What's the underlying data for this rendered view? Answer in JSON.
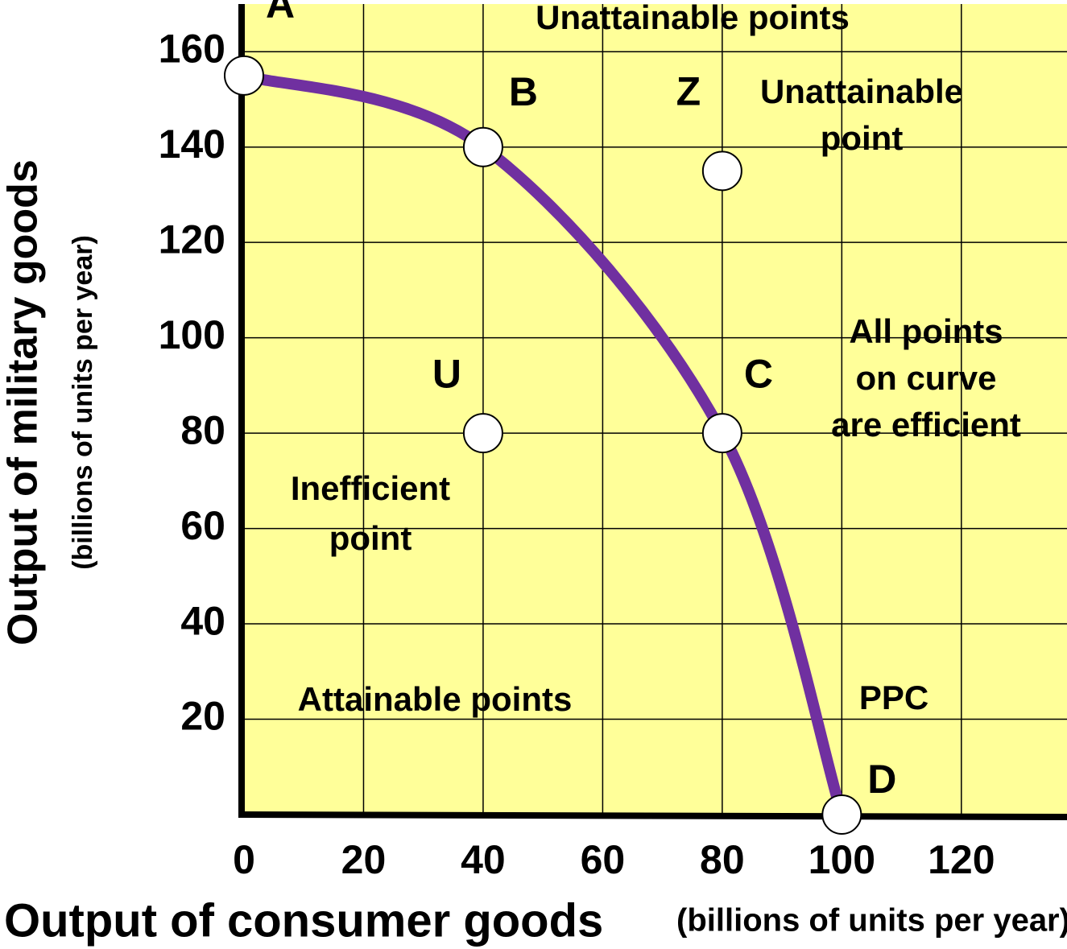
{
  "chart_data": {
    "type": "line",
    "y_title": "Output of military goods",
    "y_subtitle": "(billions of units per year)",
    "x_title": "Output of consumer goods",
    "x_subtitle": "(billions of units per year)",
    "xlim": [
      0,
      137
    ],
    "ylim": [
      0,
      170
    ],
    "xticks": [
      0,
      20,
      40,
      60,
      80,
      100,
      120
    ],
    "yticks": [
      20,
      40,
      60,
      80,
      100,
      120,
      140,
      160
    ],
    "grid": true,
    "background": "#ffff99",
    "series": [
      {
        "name": "PPC",
        "color": "#7030a0",
        "labels": [
          "A",
          "B",
          "C",
          "D"
        ],
        "x": [
          0,
          40,
          80,
          100
        ],
        "values": [
          155,
          140,
          80,
          0
        ]
      }
    ],
    "points": [
      {
        "label": "Z",
        "x": 80,
        "y": 135
      },
      {
        "label": "U",
        "x": 40,
        "y": 80
      }
    ],
    "annotations": [
      {
        "lines": [
          "Unattainable points"
        ]
      },
      {
        "lines": [
          "Unattainable",
          "point"
        ]
      },
      {
        "lines": [
          "All points",
          "on curve",
          "are efficient"
        ]
      },
      {
        "lines": [
          "Inefficient",
          "point"
        ]
      },
      {
        "lines": [
          "Attainable points"
        ]
      }
    ]
  }
}
